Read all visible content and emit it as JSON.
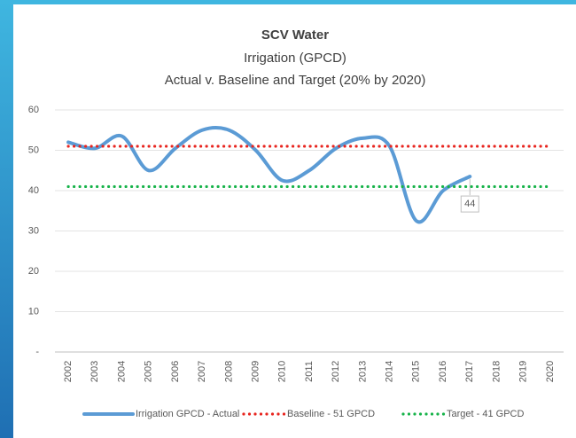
{
  "chart_data": {
    "type": "line",
    "title": "SCV Water",
    "subtitle": "Irrigation (GPCD)",
    "subtitle2": "Actual v. Baseline and Target (20% by 2020)",
    "categories": [
      "2002",
      "2003",
      "2004",
      "2005",
      "2006",
      "2007",
      "2008",
      "2009",
      "2010",
      "2011",
      "2012",
      "2013",
      "2014",
      "2015",
      "2016",
      "2017",
      "2018",
      "2019",
      "2020"
    ],
    "series": [
      {
        "name": "Irrigation GPCD - Actual",
        "color": "#5b9bd5",
        "style": "solid",
        "values": [
          52,
          50.5,
          53.5,
          45,
          50.5,
          55,
          55,
          50,
          42.5,
          45,
          50.5,
          53,
          51,
          32.5,
          40,
          43.5,
          null,
          null,
          null
        ],
        "value_labels": [
          null,
          null,
          null,
          null,
          null,
          null,
          null,
          null,
          null,
          null,
          null,
          null,
          null,
          null,
          null,
          "44",
          null,
          null,
          null
        ]
      },
      {
        "name": "Baseline - 51 GPCD",
        "color": "#e8251f",
        "style": "dotted",
        "values": [
          51,
          51,
          51,
          51,
          51,
          51,
          51,
          51,
          51,
          51,
          51,
          51,
          51,
          51,
          51,
          51,
          51,
          51,
          51
        ]
      },
      {
        "name": "Target - 41 GPCD",
        "color": "#17b34a",
        "style": "dotted",
        "values": [
          41,
          41,
          41,
          41,
          41,
          41,
          41,
          41,
          41,
          41,
          41,
          41,
          41,
          41,
          41,
          41,
          41,
          41,
          41
        ]
      }
    ],
    "ylim": [
      0,
      60
    ],
    "yticks": [
      {
        "value": 0,
        "label": "-"
      },
      10,
      20,
      30,
      40,
      50,
      60
    ],
    "grid": true,
    "legend": "bottom"
  }
}
